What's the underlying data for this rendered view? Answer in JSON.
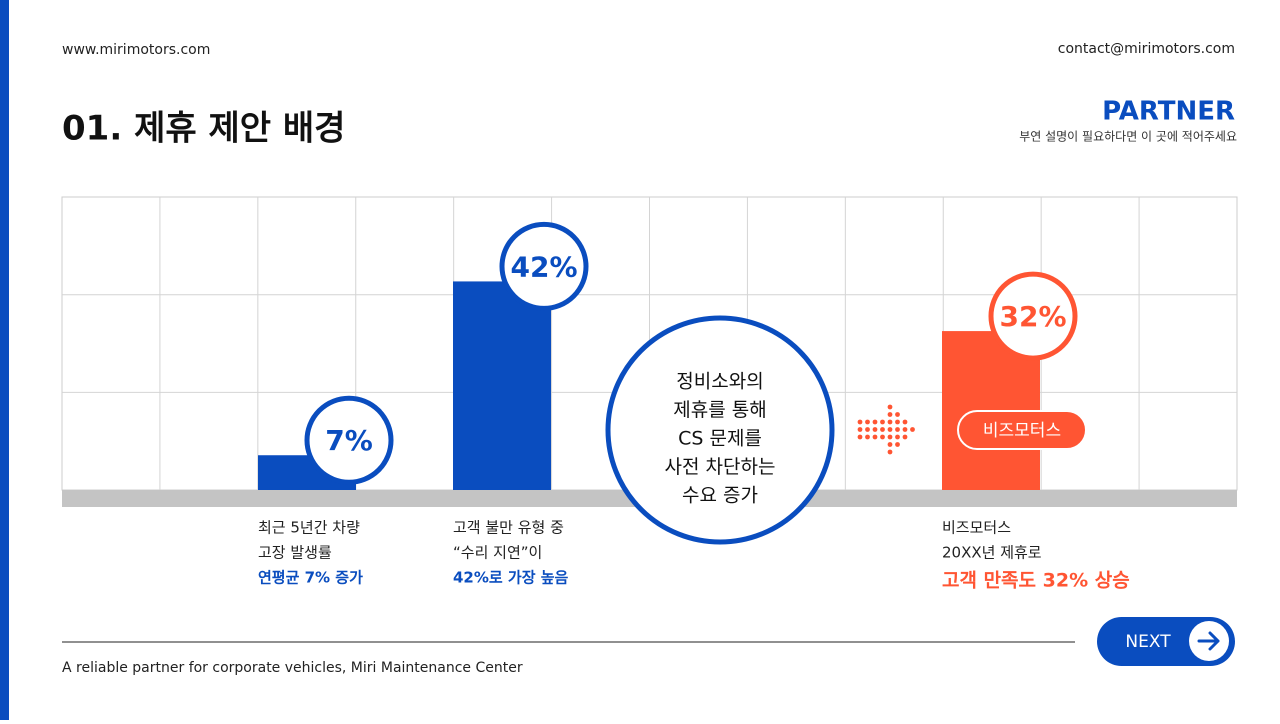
{
  "header": {
    "website": "www.mirimotors.com",
    "email": "contact@mirimotors.com",
    "title": "01. 제휴 제안 배경",
    "brand": "PARTNER",
    "brand_note": "부연 설명이 필요하다면 이 곳에 적어주세요"
  },
  "chart_data": {
    "type": "bar",
    "values": [
      7,
      42,
      32
    ],
    "value_labels": [
      "7%",
      "42%",
      "32%"
    ],
    "colors": [
      "#0a4dbf",
      "#0a4dbf",
      "#ff5533"
    ],
    "ylim": [
      0,
      59
    ],
    "captions": [
      [
        "최근 5년간 차량",
        "고장 발생률",
        "연평균 7% 증가"
      ],
      [
        "고객 불만 유형 중",
        "“수리 지연”이",
        "42%로 가장 높음"
      ],
      [
        "비즈모터스",
        "20XX년 제휴로",
        "고객 만족도 32% 상승"
      ]
    ]
  },
  "callout": [
    "정비소와의",
    "제휴를 통해",
    "CS 문제를",
    "사전 차단하는",
    "수요 증가"
  ],
  "badge": "비즈모터스",
  "footer": {
    "tagline": "A reliable partner for corporate vehicles, Miri Maintenance Center",
    "button": "NEXT"
  }
}
